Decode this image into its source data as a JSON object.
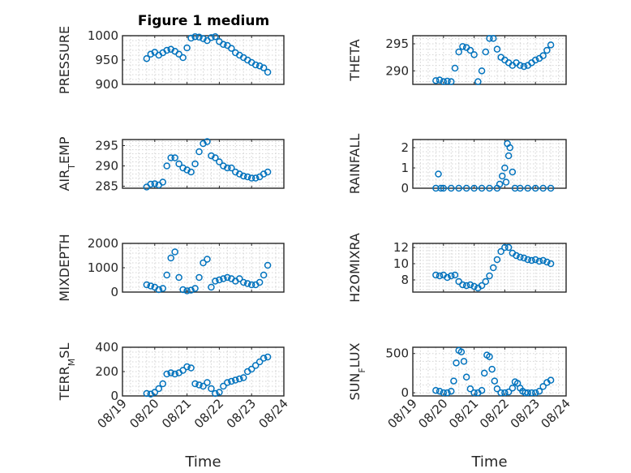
{
  "figure": {
    "title": "Figure 1 medium"
  },
  "chart_data": [
    {
      "type": "scatter",
      "title": "Figure 1 medium",
      "ylabel": "PRESSURE",
      "xlabel": "",
      "xlim": [
        "08/19",
        "08/24"
      ],
      "ylim": [
        900,
        1000
      ],
      "yticks": [
        "900",
        "950",
        "1000"
      ],
      "xtick_labels": [],
      "x": [
        "08/19 18:00",
        "08/19 21:00",
        "08/20 00:00",
        "08/20 03:00",
        "08/20 06:00",
        "08/20 09:00",
        "08/20 12:00",
        "08/20 15:00",
        "08/20 18:00",
        "08/20 21:00",
        "08/21 00:00",
        "08/21 03:00",
        "08/21 06:00",
        "08/21 09:00",
        "08/21 12:00",
        "08/21 15:00",
        "08/21 18:00",
        "08/21 21:00",
        "08/22 00:00",
        "08/22 03:00",
        "08/22 06:00",
        "08/22 09:00",
        "08/22 12:00",
        "08/22 15:00",
        "08/22 18:00",
        "08/22 21:00",
        "08/23 00:00",
        "08/23 03:00",
        "08/23 06:00",
        "08/23 09:00",
        "08/23 12:00"
      ],
      "y": [
        953,
        962,
        966,
        960,
        965,
        970,
        972,
        968,
        962,
        955,
        975,
        995,
        998,
        997,
        994,
        990,
        996,
        998,
        988,
        982,
        980,
        974,
        965,
        960,
        955,
        950,
        945,
        940,
        938,
        934,
        925
      ]
    },
    {
      "type": "scatter",
      "ylabel": "THETA",
      "xlabel": "",
      "xlim": [
        "08/19",
        "08/24"
      ],
      "ylim": [
        287.5,
        296.5
      ],
      "yticks": [
        "290",
        "295"
      ],
      "xtick_labels": [],
      "x": [
        "08/19 18:00",
        "08/19 21:00",
        "08/20 00:00",
        "08/20 03:00",
        "08/20 06:00",
        "08/20 09:00",
        "08/20 12:00",
        "08/20 15:00",
        "08/20 18:00",
        "08/20 21:00",
        "08/21 00:00",
        "08/21 03:00",
        "08/21 06:00",
        "08/21 09:00",
        "08/21 12:00",
        "08/21 15:00",
        "08/21 18:00",
        "08/21 21:00",
        "08/22 00:00",
        "08/22 03:00",
        "08/22 06:00",
        "08/22 09:00",
        "08/22 12:00",
        "08/22 15:00",
        "08/22 18:00",
        "08/22 21:00",
        "08/23 00:00",
        "08/23 03:00",
        "08/23 06:00",
        "08/23 09:00",
        "08/23 12:00"
      ],
      "y": [
        288.2,
        288.3,
        288.0,
        288.1,
        288.0,
        290.5,
        293.5,
        294.5,
        294.3,
        293.8,
        293.0,
        288.0,
        290.0,
        293.5,
        296.0,
        296.0,
        294.0,
        292.5,
        292.0,
        291.5,
        291.0,
        291.5,
        291.0,
        290.8,
        291.0,
        291.5,
        292.0,
        292.3,
        292.8,
        293.8,
        294.8
      ]
    },
    {
      "type": "scatter",
      "ylabel": "AIR_TEMP",
      "xlabel": "",
      "xlim": [
        "08/19",
        "08/24"
      ],
      "ylim": [
        284.5,
        296.5
      ],
      "yticks": [
        "285",
        "290",
        "295"
      ],
      "xtick_labels": [],
      "x": [
        "08/19 18:00",
        "08/19 21:00",
        "08/20 00:00",
        "08/20 03:00",
        "08/20 06:00",
        "08/20 09:00",
        "08/20 12:00",
        "08/20 15:00",
        "08/20 18:00",
        "08/20 21:00",
        "08/21 00:00",
        "08/21 03:00",
        "08/21 06:00",
        "08/21 09:00",
        "08/21 12:00",
        "08/21 15:00",
        "08/21 18:00",
        "08/21 21:00",
        "08/22 00:00",
        "08/22 03:00",
        "08/22 06:00",
        "08/22 09:00",
        "08/22 12:00",
        "08/22 15:00",
        "08/22 18:00",
        "08/22 21:00",
        "08/23 00:00",
        "08/23 03:00",
        "08/23 06:00",
        "08/23 09:00",
        "08/23 12:00"
      ],
      "y": [
        284.8,
        285.5,
        285.6,
        285.3,
        286.0,
        290.0,
        292.0,
        292.0,
        290.5,
        289.5,
        289.0,
        288.5,
        290.5,
        293.5,
        295.5,
        296.0,
        292.5,
        292.0,
        291.0,
        290.0,
        289.5,
        289.5,
        288.5,
        288.0,
        287.5,
        287.3,
        287.0,
        287.0,
        287.3,
        288.0,
        288.5
      ]
    },
    {
      "type": "scatter",
      "ylabel": "RAINFALL",
      "xlabel": "",
      "xlim": [
        "08/19",
        "08/24"
      ],
      "ylim": [
        0,
        2.4
      ],
      "yticks": [
        "0",
        "1",
        "2"
      ],
      "xtick_labels": [],
      "x": [
        "08/19 18:00",
        "08/19 20:00",
        "08/19 22:00",
        "08/20 00:00",
        "08/20 06:00",
        "08/20 12:00",
        "08/20 18:00",
        "08/21 00:00",
        "08/21 06:00",
        "08/21 12:00",
        "08/21 18:00",
        "08/21 20:00",
        "08/21 22:00",
        "08/22 00:00",
        "08/22 01:00",
        "08/22 02:00",
        "08/22 03:00",
        "08/22 04:00",
        "08/22 06:00",
        "08/22 08:00",
        "08/22 12:00",
        "08/22 18:00",
        "08/23 00:00",
        "08/23 06:00",
        "08/23 12:00"
      ],
      "y": [
        0,
        0.7,
        0,
        0,
        0,
        0,
        0,
        0,
        0,
        0,
        0,
        0.2,
        0.6,
        1.0,
        0.3,
        2.2,
        1.6,
        2.0,
        0.8,
        0,
        0,
        0,
        0,
        0,
        0
      ]
    },
    {
      "type": "scatter",
      "ylabel": "MIXDEPTH",
      "xlabel": "",
      "xlim": [
        "08/19",
        "08/24"
      ],
      "ylim": [
        0,
        2000
      ],
      "yticks": [
        "0",
        "1000",
        "2000"
      ],
      "xtick_labels": [],
      "x": [
        "08/19 18:00",
        "08/19 21:00",
        "08/20 00:00",
        "08/20 03:00",
        "08/20 06:00",
        "08/20 09:00",
        "08/20 12:00",
        "08/20 15:00",
        "08/20 18:00",
        "08/20 21:00",
        "08/21 00:00",
        "08/21 03:00",
        "08/21 06:00",
        "08/21 09:00",
        "08/21 12:00",
        "08/21 15:00",
        "08/21 18:00",
        "08/21 21:00",
        "08/22 00:00",
        "08/22 03:00",
        "08/22 06:00",
        "08/22 09:00",
        "08/22 12:00",
        "08/22 15:00",
        "08/22 18:00",
        "08/22 21:00",
        "08/23 00:00",
        "08/23 03:00",
        "08/23 06:00",
        "08/23 09:00",
        "08/23 12:00"
      ],
      "y": [
        300,
        250,
        200,
        100,
        150,
        700,
        1400,
        1650,
        600,
        100,
        50,
        80,
        150,
        600,
        1200,
        1350,
        200,
        450,
        500,
        550,
        600,
        550,
        450,
        550,
        400,
        350,
        300,
        300,
        400,
        700,
        1100
      ]
    },
    {
      "type": "scatter",
      "ylabel": "H2OMIXRA",
      "xlabel": "",
      "xlim": [
        "08/19",
        "08/24"
      ],
      "ylim": [
        6.5,
        12.5
      ],
      "yticks": [
        "8",
        "10",
        "12"
      ],
      "xtick_labels": [],
      "x": [
        "08/19 18:00",
        "08/19 21:00",
        "08/20 00:00",
        "08/20 03:00",
        "08/20 06:00",
        "08/20 09:00",
        "08/20 12:00",
        "08/20 15:00",
        "08/20 18:00",
        "08/20 21:00",
        "08/21 00:00",
        "08/21 03:00",
        "08/21 06:00",
        "08/21 09:00",
        "08/21 12:00",
        "08/21 15:00",
        "08/21 18:00",
        "08/21 21:00",
        "08/22 00:00",
        "08/22 03:00",
        "08/22 06:00",
        "08/22 09:00",
        "08/22 12:00",
        "08/22 15:00",
        "08/22 18:00",
        "08/22 21:00",
        "08/23 00:00",
        "08/23 03:00",
        "08/23 06:00",
        "08/23 09:00",
        "08/23 12:00"
      ],
      "y": [
        8.6,
        8.5,
        8.6,
        8.3,
        8.5,
        8.6,
        7.8,
        7.4,
        7.3,
        7.4,
        7.2,
        7.0,
        7.3,
        7.8,
        8.5,
        9.5,
        10.5,
        11.5,
        12.0,
        12.0,
        11.3,
        11.0,
        10.8,
        10.7,
        10.5,
        10.4,
        10.5,
        10.3,
        10.4,
        10.2,
        10.0
      ]
    },
    {
      "type": "scatter",
      "ylabel": "TERR_MSL",
      "xlabel": "Time",
      "xlim": [
        "08/19",
        "08/24"
      ],
      "ylim": [
        0,
        400
      ],
      "yticks": [
        "0",
        "200",
        "400"
      ],
      "xtick_labels": [
        "08/19",
        "08/20",
        "08/21",
        "08/22",
        "08/23",
        "08/24"
      ],
      "x": [
        "08/19 18:00",
        "08/19 21:00",
        "08/20 00:00",
        "08/20 03:00",
        "08/20 06:00",
        "08/20 09:00",
        "08/20 12:00",
        "08/20 15:00",
        "08/20 18:00",
        "08/20 21:00",
        "08/21 00:00",
        "08/21 03:00",
        "08/21 06:00",
        "08/21 09:00",
        "08/21 12:00",
        "08/21 15:00",
        "08/21 18:00",
        "08/21 21:00",
        "08/22 00:00",
        "08/22 03:00",
        "08/22 06:00",
        "08/22 09:00",
        "08/22 12:00",
        "08/22 15:00",
        "08/22 18:00",
        "08/22 21:00",
        "08/23 00:00",
        "08/23 03:00",
        "08/23 06:00",
        "08/23 09:00",
        "08/23 12:00"
      ],
      "y": [
        20,
        15,
        30,
        60,
        100,
        180,
        190,
        180,
        190,
        210,
        240,
        230,
        100,
        90,
        80,
        110,
        60,
        20,
        30,
        80,
        110,
        120,
        130,
        140,
        150,
        200,
        220,
        250,
        280,
        310,
        320
      ]
    },
    {
      "type": "scatter",
      "ylabel": "SUN_FLUX",
      "xlabel": "Time",
      "xlim": [
        "08/19",
        "08/24"
      ],
      "ylim": [
        -40,
        580
      ],
      "yticks": [
        "0",
        "500"
      ],
      "xtick_labels": [
        "08/19",
        "08/20",
        "08/21",
        "08/22",
        "08/23",
        "08/24"
      ],
      "x": [
        "08/19 18:00",
        "08/19 21:00",
        "08/20 00:00",
        "08/20 03:00",
        "08/20 06:00",
        "08/20 08:00",
        "08/20 10:00",
        "08/20 12:00",
        "08/20 14:00",
        "08/20 16:00",
        "08/20 18:00",
        "08/20 21:00",
        "08/21 00:00",
        "08/21 03:00",
        "08/21 06:00",
        "08/21 08:00",
        "08/21 10:00",
        "08/21 12:00",
        "08/21 14:00",
        "08/21 16:00",
        "08/21 18:00",
        "08/21 21:00",
        "08/22 00:00",
        "08/22 03:00",
        "08/22 06:00",
        "08/22 08:00",
        "08/22 10:00",
        "08/22 12:00",
        "08/22 14:00",
        "08/22 16:00",
        "08/22 18:00",
        "08/22 21:00",
        "08/23 00:00",
        "08/23 03:00",
        "08/23 06:00",
        "08/23 09:00",
        "08/23 12:00"
      ],
      "y": [
        30,
        20,
        0,
        0,
        20,
        150,
        380,
        540,
        520,
        400,
        200,
        50,
        0,
        0,
        30,
        250,
        480,
        460,
        300,
        150,
        50,
        0,
        0,
        10,
        60,
        140,
        120,
        60,
        20,
        0,
        0,
        0,
        0,
        20,
        80,
        130,
        160
      ]
    }
  ]
}
